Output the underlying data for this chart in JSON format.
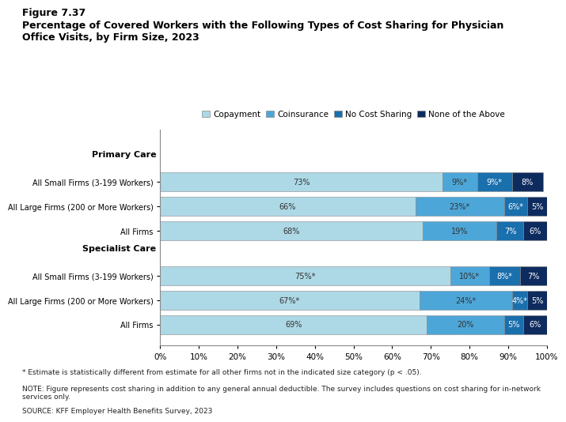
{
  "title_line1": "Figure 7.37",
  "title_line2": "Percentage of Covered Workers with the Following Types of Cost Sharing for Physician\nOffice Visits, by Firm Size, 2023",
  "legend_labels": [
    "Copayment",
    "Coinsurance",
    "No Cost Sharing",
    "None of the Above"
  ],
  "colors": [
    "#add8e6",
    "#4da6d8",
    "#1a6fad",
    "#0d2b5e"
  ],
  "categories": [
    "All Small Firms (3-199 Workers)",
    "All Large Firms (200 or More Workers)",
    "All Firms",
    "All Small Firms (3-199 Workers)",
    "All Large Firms (200 or More Workers)",
    "All Firms"
  ],
  "data": [
    [
      73,
      9,
      9,
      8
    ],
    [
      66,
      23,
      6,
      5
    ],
    [
      68,
      19,
      7,
      6
    ],
    [
      75,
      10,
      8,
      7
    ],
    [
      67,
      24,
      4,
      5
    ],
    [
      69,
      20,
      5,
      6
    ]
  ],
  "bar_labels": [
    [
      "73%",
      "9%*",
      "9%*",
      "8%"
    ],
    [
      "66%",
      "23%*",
      "6%*",
      "5%"
    ],
    [
      "68%",
      "19%",
      "7%",
      "6%"
    ],
    [
      "75%*",
      "10%*",
      "8%*",
      "7%"
    ],
    [
      "67%*",
      "24%*",
      "4%*",
      "5%"
    ],
    [
      "69%",
      "20%",
      "5%",
      "6%"
    ]
  ],
  "primary_care_label": "Primary Care",
  "specialist_care_label": "Specialist Care",
  "footnote1": "* Estimate is statistically different from estimate for all other firms not in the indicated size category (p < .05).",
  "footnote2": "NOTE: Figure represents cost sharing in addition to any general annual deductible. The survey includes questions on cost sharing for in-network\nservices only.",
  "footnote3": "SOURCE: KFF Employer Health Benefits Survey, 2023",
  "xlim": [
    0,
    100
  ],
  "xticks": [
    0,
    10,
    20,
    30,
    40,
    50,
    60,
    70,
    80,
    90,
    100
  ],
  "xticklabels": [
    "0%",
    "10%",
    "20%",
    "30%",
    "40%",
    "50%",
    "60%",
    "70%",
    "80%",
    "90%",
    "100%"
  ]
}
